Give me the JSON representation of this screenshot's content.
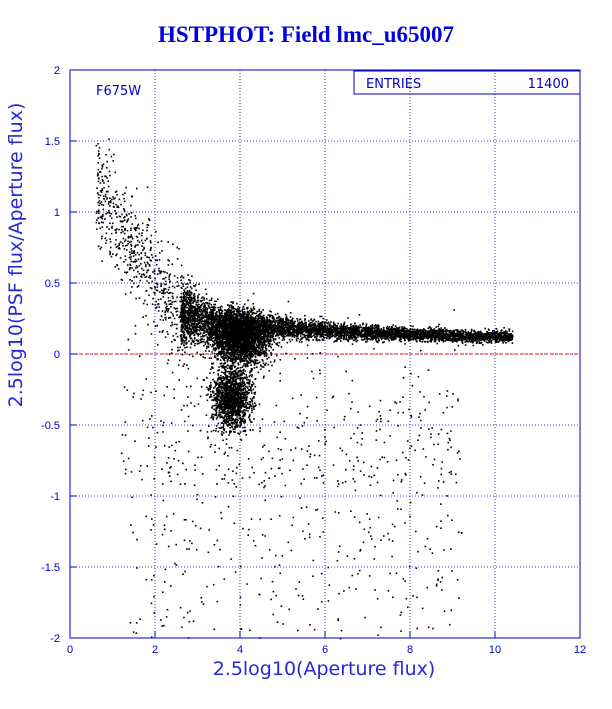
{
  "chart_data": {
    "type": "scatter",
    "title": "HSTPHOT: Field lmc_u65007",
    "xlabel": "2.5log10(Aperture flux)",
    "ylabel": "2.5log10(PSF flux/Aperture flux)",
    "xlim": [
      0,
      12
    ],
    "ylim": [
      -2,
      2
    ],
    "x_ticks": [
      "0",
      "2",
      "4",
      "6",
      "8",
      "10",
      "12"
    ],
    "y_ticks": [
      "2",
      "1.5",
      "1",
      "0.5",
      "0",
      "-0.5",
      "-1",
      "-1.5",
      "-2"
    ],
    "grid": true,
    "filter_label": "F675W",
    "stats": {
      "label": "ENTRIES",
      "value": "11400"
    },
    "reference_line": {
      "y": 0,
      "color": "#ff0000",
      "style": "dashed"
    },
    "colors": {
      "axis": "#0000c8",
      "points": "#000000"
    },
    "point_distribution": {
      "main_branch": [
        [
          2.5,
          0.3
        ],
        [
          3.5,
          0.22
        ],
        [
          4.5,
          0.2
        ],
        [
          5.5,
          0.18
        ],
        [
          6.5,
          0.16
        ],
        [
          7.5,
          0.15
        ],
        [
          8.5,
          0.14
        ],
        [
          9.5,
          0.13
        ],
        [
          10.3,
          0.13
        ]
      ],
      "secondary_clump": [
        3.8,
        -0.3
      ],
      "faint_spread_peak": [
        1.2,
        1.7
      ]
    }
  }
}
